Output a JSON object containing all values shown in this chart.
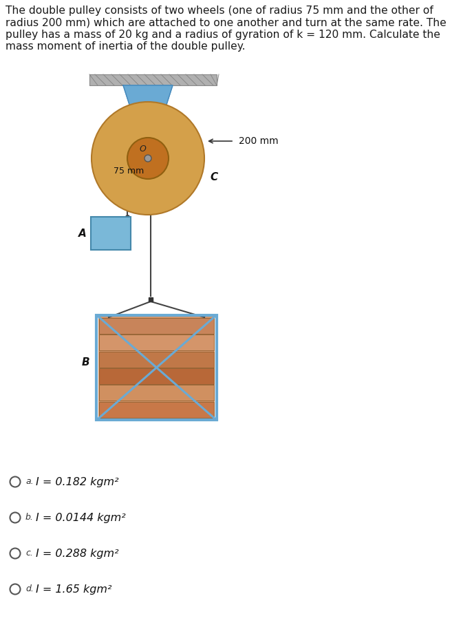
{
  "title_text": "The double pulley consists of two wheels (one of radius 75 mm and the other of\nradius 200 mm) which are attached to one another and turn at the same rate. The\npulley has a mass of 20 kg and a radius of gyration of k = 120 mm. Calculate the\nmass moment of inertia of the double pulley.",
  "label_200mm": "200 mm",
  "label_75mm": "75 mm",
  "label_C": "C",
  "label_A": "A",
  "label_B": "B",
  "label_O": "O",
  "options": [
    {
      "letter": "a",
      "text": "I = 0.182 kgm²"
    },
    {
      "letter": "b",
      "text": "I = 0.0144 kgm²"
    },
    {
      "letter": "c",
      "text": "I = 0.288 kgm²"
    },
    {
      "letter": "d",
      "text": "I = 1.65 kgm²"
    }
  ],
  "bg_color": "#ffffff",
  "ceiling_color": "#b0b0b0",
  "pulley_large_color": "#d4a04a",
  "bracket_color": "#6aaad4",
  "box_frame_color": "#6aaad4",
  "block_A_color": "#7ab8d8",
  "rope_color": "#444444",
  "plank_colors": [
    "#c8845a",
    "#d4956a",
    "#c07848",
    "#b86838",
    "#d09060",
    "#c87848"
  ]
}
